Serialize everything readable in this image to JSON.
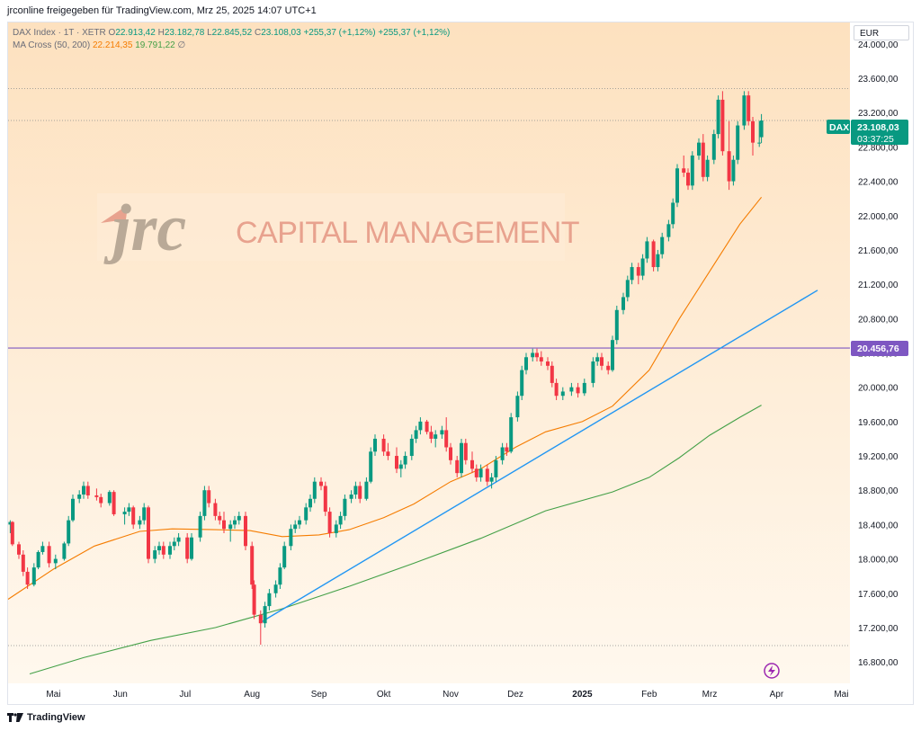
{
  "header": {
    "text": "jrconline freigegeben für TradingView.com, Mrz 25, 2025 14:07 UTC+1"
  },
  "legend": {
    "symbol": "DAX Index · 1T · XETR",
    "open_label": "O",
    "open": "22.913,42",
    "high_label": "H",
    "high": "23.182,78",
    "low_label": "L",
    "low": "22.845,52",
    "close_label": "C",
    "close": "23.108,03",
    "change": "+255,37 (+1,12%)",
    "change2": "+255,37 (+1,12%)",
    "ma_label": "MA Cross (50, 200)",
    "ma50": "22.214,35",
    "ma200": "19.791,22",
    "ma_extra": "∅"
  },
  "currency": "EUR",
  "watermark": {
    "logo_letters": "jrc",
    "text": "CAPITAL MANAGEMENT"
  },
  "price_tags": {
    "dax_label": "DAX",
    "dax_value": "23.108,03",
    "countdown": "03:37:25",
    "level_value": "20.456,76"
  },
  "footer": {
    "brand": "TradingView"
  },
  "colors": {
    "bull": "#089981",
    "bear": "#f23645",
    "ma50": "#f57c00",
    "ma200": "#43a047",
    "trend": "#2196f3",
    "level": "#7e57c2",
    "dax_tag": "#089981"
  },
  "chart_data": {
    "type": "candlestick",
    "title": "DAX Index · 1T · XETR",
    "y_ticks": [
      "24.000,00",
      "23.600,00",
      "23.200,00",
      "22.800,00",
      "22.400,00",
      "22.000,00",
      "21.600,00",
      "21.200,00",
      "20.800,00",
      "20.400,00",
      "20.000,00",
      "19.600,00",
      "19.200,00",
      "18.800,00",
      "18.400,00",
      "18.000,00",
      "17.600,00",
      "17.200,00",
      "16.800,00"
    ],
    "y_tick_values": [
      24000,
      23600,
      23200,
      22800,
      22400,
      22000,
      21600,
      21200,
      20800,
      20400,
      20000,
      19600,
      19200,
      18800,
      18400,
      18000,
      17600,
      17200,
      16800
    ],
    "x_ticks": [
      "Mai",
      "Jun",
      "Jul",
      "Aug",
      "Sep",
      "Okt",
      "Nov",
      "Dez",
      "2025",
      "Feb",
      "Mrz",
      "Apr",
      "Mai"
    ],
    "x_tick_dates": [
      "2024-05-01",
      "2024-06-01",
      "2024-07-01",
      "2024-08-01",
      "2024-09-01",
      "2024-10-01",
      "2024-11-01",
      "2024-12-01",
      "2025-01-01",
      "2025-02-01",
      "2025-03-01",
      "2025-04-01",
      "2025-05-01"
    ],
    "ylim": [
      16550,
      24250
    ],
    "xlim": [
      "2024-04-10",
      "2025-05-05"
    ],
    "horizontal_lines": [
      {
        "value": 23480,
        "style": "dotted"
      },
      {
        "value": 23108,
        "style": "dotted"
      },
      {
        "value": 20456.76,
        "style": "solid"
      },
      {
        "value": 16990,
        "style": "dotted"
      }
    ],
    "trend_line": {
      "start": [
        "2024-08-05",
        17260
      ],
      "end": [
        "2025-04-20",
        21130
      ]
    },
    "series": [
      {
        "name": "MA 50",
        "points": [
          [
            "2024-04-10",
            17530
          ],
          [
            "2024-05-01",
            17880
          ],
          [
            "2024-05-20",
            18150
          ],
          [
            "2024-06-10",
            18320
          ],
          [
            "2024-06-25",
            18350
          ],
          [
            "2024-07-15",
            18340
          ],
          [
            "2024-07-31",
            18330
          ],
          [
            "2024-08-15",
            18260
          ],
          [
            "2024-09-01",
            18280
          ],
          [
            "2024-09-15",
            18340
          ],
          [
            "2024-10-01",
            18480
          ],
          [
            "2024-10-15",
            18640
          ],
          [
            "2024-11-01",
            18900
          ],
          [
            "2024-11-15",
            19050
          ],
          [
            "2024-12-01",
            19300
          ],
          [
            "2024-12-15",
            19480
          ],
          [
            "2025-01-01",
            19600
          ],
          [
            "2025-01-15",
            19780
          ],
          [
            "2025-02-01",
            20200
          ],
          [
            "2025-02-15",
            20800
          ],
          [
            "2025-03-01",
            21350
          ],
          [
            "2025-03-15",
            21900
          ],
          [
            "2025-03-25",
            22214
          ]
        ]
      },
      {
        "name": "MA 200",
        "points": [
          [
            "2024-04-20",
            16660
          ],
          [
            "2024-05-15",
            16850
          ],
          [
            "2024-06-15",
            17050
          ],
          [
            "2024-07-15",
            17200
          ],
          [
            "2024-08-15",
            17420
          ],
          [
            "2024-09-15",
            17680
          ],
          [
            "2024-10-15",
            17950
          ],
          [
            "2024-11-15",
            18240
          ],
          [
            "2024-12-15",
            18560
          ],
          [
            "2025-01-15",
            18780
          ],
          [
            "2025-02-01",
            18950
          ],
          [
            "2025-02-15",
            19180
          ],
          [
            "2025-03-01",
            19440
          ],
          [
            "2025-03-15",
            19650
          ],
          [
            "2025-03-25",
            19791
          ]
        ]
      }
    ],
    "candles": [
      [
        "2024-04-11",
        18400,
        18450,
        18300,
        18430
      ],
      [
        "2024-04-12",
        18430,
        18440,
        18150,
        18170
      ],
      [
        "2024-04-15",
        18170,
        18200,
        18000,
        18050
      ],
      [
        "2024-04-17",
        18050,
        18100,
        17800,
        17850
      ],
      [
        "2024-04-19",
        17850,
        17900,
        17650,
        17700
      ],
      [
        "2024-04-22",
        17700,
        17950,
        17680,
        17900
      ],
      [
        "2024-04-24",
        17900,
        18100,
        17880,
        18080
      ],
      [
        "2024-04-26",
        18080,
        18200,
        18050,
        18150
      ],
      [
        "2024-04-29",
        18150,
        18200,
        17900,
        17950
      ],
      [
        "2024-05-02",
        17950,
        18050,
        17880,
        18000
      ],
      [
        "2024-05-06",
        18000,
        18200,
        17980,
        18180
      ],
      [
        "2024-05-08",
        18180,
        18500,
        18150,
        18450
      ],
      [
        "2024-05-10",
        18450,
        18750,
        18430,
        18700
      ],
      [
        "2024-05-13",
        18700,
        18800,
        18650,
        18750
      ],
      [
        "2024-05-15",
        18750,
        18900,
        18700,
        18850
      ],
      [
        "2024-05-17",
        18850,
        18900,
        18700,
        18740
      ],
      [
        "2024-05-21",
        18740,
        18820,
        18680,
        18720
      ],
      [
        "2024-05-23",
        18720,
        18760,
        18600,
        18650
      ],
      [
        "2024-05-27",
        18650,
        18800,
        18620,
        18780
      ],
      [
        "2024-05-29",
        18780,
        18800,
        18500,
        18520
      ],
      [
        "2024-06-03",
        18520,
        18600,
        18400,
        18550
      ],
      [
        "2024-06-05",
        18550,
        18650,
        18500,
        18600
      ],
      [
        "2024-06-07",
        18600,
        18620,
        18350,
        18400
      ],
      [
        "2024-06-10",
        18400,
        18500,
        18350,
        18450
      ],
      [
        "2024-06-12",
        18450,
        18650,
        18400,
        18600
      ],
      [
        "2024-06-14",
        18600,
        18620,
        17950,
        18000
      ],
      [
        "2024-06-17",
        18000,
        18150,
        17950,
        18100
      ],
      [
        "2024-06-19",
        18100,
        18200,
        18050,
        18150
      ],
      [
        "2024-06-21",
        18150,
        18200,
        18000,
        18050
      ],
      [
        "2024-06-24",
        18050,
        18200,
        18000,
        18150
      ],
      [
        "2024-06-26",
        18150,
        18250,
        18100,
        18200
      ],
      [
        "2024-06-28",
        18200,
        18300,
        18150,
        18250
      ],
      [
        "2024-07-02",
        18250,
        18300,
        17950,
        18000
      ],
      [
        "2024-07-04",
        18000,
        18300,
        17980,
        18250
      ],
      [
        "2024-07-08",
        18250,
        18550,
        18200,
        18500
      ],
      [
        "2024-07-10",
        18500,
        18850,
        18450,
        18800
      ],
      [
        "2024-07-12",
        18800,
        18850,
        18600,
        18650
      ],
      [
        "2024-07-15",
        18650,
        18700,
        18450,
        18500
      ],
      [
        "2024-07-17",
        18500,
        18550,
        18400,
        18450
      ],
      [
        "2024-07-19",
        18450,
        18550,
        18300,
        18350
      ],
      [
        "2024-07-22",
        18350,
        18450,
        18200,
        18400
      ],
      [
        "2024-07-24",
        18400,
        18500,
        18350,
        18450
      ],
      [
        "2024-07-26",
        18450,
        18550,
        18400,
        18500
      ],
      [
        "2024-07-29",
        18500,
        18550,
        18100,
        18150
      ],
      [
        "2024-08-01",
        18150,
        18200,
        17650,
        17700
      ],
      [
        "2024-08-02",
        17700,
        17750,
        17300,
        17350
      ],
      [
        "2024-08-05",
        17350,
        17400,
        17000,
        17250
      ],
      [
        "2024-08-07",
        17250,
        17500,
        17200,
        17450
      ],
      [
        "2024-08-09",
        17450,
        17650,
        17400,
        17600
      ],
      [
        "2024-08-12",
        17600,
        17750,
        17550,
        17700
      ],
      [
        "2024-08-14",
        17700,
        17950,
        17650,
        17900
      ],
      [
        "2024-08-16",
        17900,
        18200,
        17880,
        18150
      ],
      [
        "2024-08-19",
        18150,
        18400,
        18100,
        18350
      ],
      [
        "2024-08-21",
        18350,
        18450,
        18300,
        18400
      ],
      [
        "2024-08-23",
        18400,
        18500,
        18350,
        18450
      ],
      [
        "2024-08-26",
        18450,
        18650,
        18400,
        18600
      ],
      [
        "2024-08-28",
        18600,
        18750,
        18550,
        18700
      ],
      [
        "2024-08-30",
        18700,
        18950,
        18650,
        18900
      ],
      [
        "2024-09-02",
        18900,
        18950,
        18800,
        18850
      ],
      [
        "2024-09-04",
        18850,
        18900,
        18500,
        18550
      ],
      [
        "2024-09-06",
        18550,
        18600,
        18250,
        18300
      ],
      [
        "2024-09-09",
        18300,
        18450,
        18250,
        18400
      ],
      [
        "2024-09-11",
        18400,
        18550,
        18350,
        18500
      ],
      [
        "2024-09-13",
        18500,
        18750,
        18450,
        18700
      ],
      [
        "2024-09-16",
        18700,
        18800,
        18650,
        18750
      ],
      [
        "2024-09-18",
        18750,
        18900,
        18700,
        18850
      ],
      [
        "2024-09-20",
        18850,
        18900,
        18650,
        18700
      ],
      [
        "2024-09-23",
        18700,
        18950,
        18680,
        18900
      ],
      [
        "2024-09-25",
        18900,
        19300,
        18880,
        19250
      ],
      [
        "2024-09-27",
        19250,
        19450,
        19200,
        19400
      ],
      [
        "2024-10-01",
        19400,
        19450,
        19200,
        19250
      ],
      [
        "2024-10-03",
        19250,
        19350,
        19150,
        19200
      ],
      [
        "2024-10-07",
        19200,
        19300,
        19000,
        19050
      ],
      [
        "2024-10-09",
        19050,
        19150,
        18950,
        19100
      ],
      [
        "2024-10-11",
        19100,
        19250,
        19050,
        19200
      ],
      [
        "2024-10-14",
        19200,
        19450,
        19150,
        19400
      ],
      [
        "2024-10-16",
        19400,
        19550,
        19350,
        19500
      ],
      [
        "2024-10-18",
        19500,
        19650,
        19450,
        19600
      ],
      [
        "2024-10-21",
        19600,
        19620,
        19450,
        19480
      ],
      [
        "2024-10-23",
        19480,
        19550,
        19350,
        19400
      ],
      [
        "2024-10-25",
        19400,
        19500,
        19300,
        19450
      ],
      [
        "2024-10-28",
        19450,
        19550,
        19400,
        19500
      ],
      [
        "2024-10-30",
        19500,
        19650,
        19250,
        19300
      ],
      [
        "2024-11-01",
        19300,
        19350,
        19100,
        19150
      ],
      [
        "2024-11-04",
        19150,
        19200,
        18950,
        19000
      ],
      [
        "2024-11-06",
        19000,
        19400,
        18950,
        19350
      ],
      [
        "2024-11-08",
        19350,
        19400,
        19100,
        19150
      ],
      [
        "2024-11-11",
        19150,
        19250,
        19000,
        19050
      ],
      [
        "2024-11-13",
        19050,
        19100,
        18900,
        18950
      ],
      [
        "2024-11-15",
        18950,
        19100,
        18900,
        19050
      ],
      [
        "2024-11-18",
        19050,
        19100,
        18850,
        18900
      ],
      [
        "2024-11-20",
        18900,
        19000,
        18820,
        18950
      ],
      [
        "2024-11-22",
        18950,
        19200,
        18900,
        19150
      ],
      [
        "2024-11-25",
        19150,
        19350,
        19100,
        19300
      ],
      [
        "2024-11-27",
        19300,
        19350,
        19200,
        19250
      ],
      [
        "2024-11-29",
        19250,
        19700,
        19230,
        19650
      ],
      [
        "2024-12-02",
        19650,
        19950,
        19600,
        19900
      ],
      [
        "2024-12-04",
        19900,
        20250,
        19850,
        20200
      ],
      [
        "2024-12-06",
        20200,
        20400,
        20150,
        20350
      ],
      [
        "2024-12-09",
        20350,
        20450,
        20300,
        20400
      ],
      [
        "2024-12-11",
        20400,
        20450,
        20300,
        20350
      ],
      [
        "2024-12-13",
        20350,
        20420,
        20250,
        20300
      ],
      [
        "2024-12-16",
        20300,
        20350,
        20200,
        20250
      ],
      [
        "2024-12-18",
        20250,
        20300,
        20000,
        20050
      ],
      [
        "2024-12-20",
        20050,
        20100,
        19850,
        19900
      ],
      [
        "2024-12-23",
        19900,
        20000,
        19850,
        19950
      ],
      [
        "2024-12-27",
        19950,
        20050,
        19900,
        20000
      ],
      [
        "2024-12-30",
        20000,
        20050,
        19880,
        19930
      ],
      [
        "2025-01-02",
        19930,
        20100,
        19900,
        20050
      ],
      [
        "2025-01-06",
        20050,
        20350,
        20000,
        20300
      ],
      [
        "2025-01-08",
        20300,
        20400,
        20250,
        20350
      ],
      [
        "2025-01-10",
        20350,
        20400,
        20200,
        20250
      ],
      [
        "2025-01-13",
        20250,
        20300,
        20150,
        20200
      ],
      [
        "2025-01-15",
        20200,
        20600,
        20180,
        20550
      ],
      [
        "2025-01-17",
        20550,
        20950,
        20500,
        20900
      ],
      [
        "2025-01-20",
        20900,
        21100,
        20850,
        21050
      ],
      [
        "2025-01-22",
        21050,
        21300,
        21000,
        21250
      ],
      [
        "2025-01-24",
        21250,
        21450,
        21200,
        21400
      ],
      [
        "2025-01-27",
        21400,
        21450,
        21200,
        21300
      ],
      [
        "2025-01-29",
        21300,
        21550,
        21250,
        21500
      ],
      [
        "2025-01-31",
        21500,
        21750,
        21450,
        21700
      ],
      [
        "2025-02-03",
        21700,
        21720,
        21350,
        21400
      ],
      [
        "2025-02-05",
        21400,
        21600,
        21350,
        21550
      ],
      [
        "2025-02-07",
        21550,
        21800,
        21500,
        21750
      ],
      [
        "2025-02-10",
        21750,
        21950,
        21700,
        21900
      ],
      [
        "2025-02-12",
        21900,
        22200,
        21850,
        22150
      ],
      [
        "2025-02-14",
        22150,
        22600,
        22100,
        22550
      ],
      [
        "2025-02-17",
        22550,
        22700,
        22450,
        22500
      ],
      [
        "2025-02-19",
        22500,
        22550,
        22300,
        22350
      ],
      [
        "2025-02-21",
        22350,
        22750,
        22300,
        22700
      ],
      [
        "2025-02-24",
        22700,
        22900,
        22650,
        22850
      ],
      [
        "2025-02-26",
        22850,
        22950,
        22400,
        22450
      ],
      [
        "2025-02-28",
        22450,
        22700,
        22400,
        22650
      ],
      [
        "2025-03-03",
        22650,
        23000,
        22600,
        22950
      ],
      [
        "2025-03-05",
        22950,
        23400,
        22900,
        23350
      ],
      [
        "2025-03-07",
        23350,
        23450,
        22700,
        22750
      ],
      [
        "2025-03-10",
        22750,
        23100,
        22300,
        22400
      ],
      [
        "2025-03-12",
        22400,
        22700,
        22350,
        22650
      ],
      [
        "2025-03-14",
        22650,
        23100,
        22600,
        23050
      ],
      [
        "2025-03-17",
        23050,
        23450,
        23000,
        23400
      ],
      [
        "2025-03-19",
        23400,
        23450,
        23050,
        23100
      ],
      [
        "2025-03-21",
        23100,
        23150,
        22700,
        22850
      ],
      [
        "2025-03-24",
        22850,
        23100,
        22800,
        22850
      ],
      [
        "2025-03-25",
        22913.42,
        23182.78,
        22845.52,
        23108.03
      ]
    ]
  }
}
